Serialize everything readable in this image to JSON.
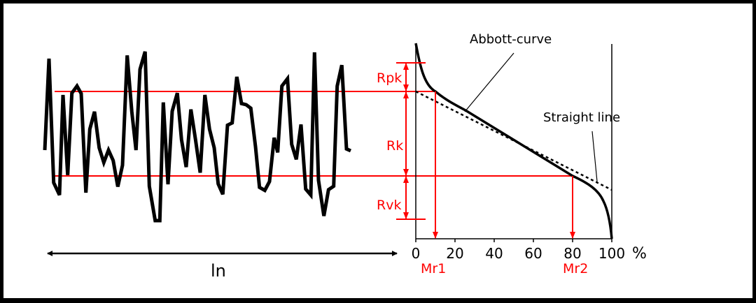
{
  "labels": {
    "abbott_curve": "Abbott-curve",
    "straight_line": "Straight line",
    "rpk": "Rpk",
    "rk": "Rk",
    "rvk": "Rvk",
    "mr1": "Mr1",
    "mr2": "Mr2",
    "ln": "ln",
    "percent_unit": "%"
  },
  "x_axis_ticks": [
    "0",
    "20",
    "40",
    "60",
    "80",
    "100"
  ],
  "colors": {
    "profile": "#000000",
    "parameter_lines": "#ff0000",
    "frame": "#000000"
  }
}
